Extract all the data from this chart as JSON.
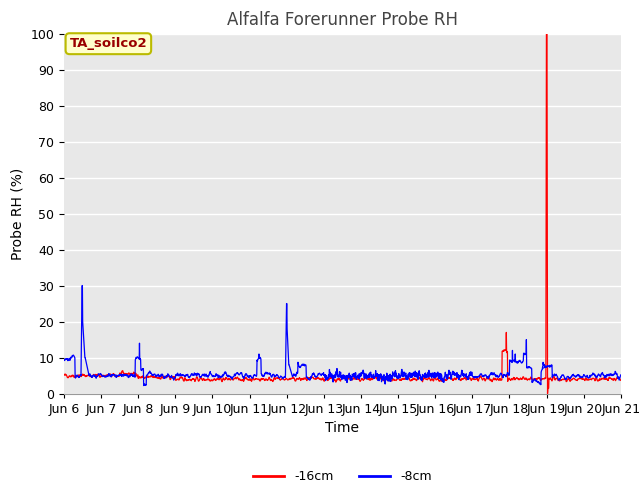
{
  "title": "Alfalfa Forerunner Probe RH",
  "ylabel": "Probe RH (%)",
  "xlabel": "Time",
  "ylim": [
    0,
    100
  ],
  "yticks": [
    0,
    10,
    20,
    30,
    40,
    50,
    60,
    70,
    80,
    90,
    100
  ],
  "xtick_labels": [
    "Jun 6",
    "Jun 7",
    "Jun 8",
    "Jun 9",
    "Jun 10",
    "Jun 11",
    "Jun 12",
    "Jun 13",
    "Jun 14",
    "Jun 15",
    "Jun 16",
    "Jun 17",
    "Jun 18",
    "Jun 19",
    "Jun 20",
    "Jun 21"
  ],
  "color_16cm": "#FF0000",
  "color_8cm": "#0000FF",
  "bg_color": "#E8E8E8",
  "annotation_text": "TA_soilco2",
  "annotation_bg": "#FFFFCC",
  "annotation_border": "#BBBB00",
  "legend_16cm": "-16cm",
  "legend_8cm": "-8cm",
  "title_fontsize": 12,
  "axis_label_fontsize": 10,
  "tick_fontsize": 9
}
